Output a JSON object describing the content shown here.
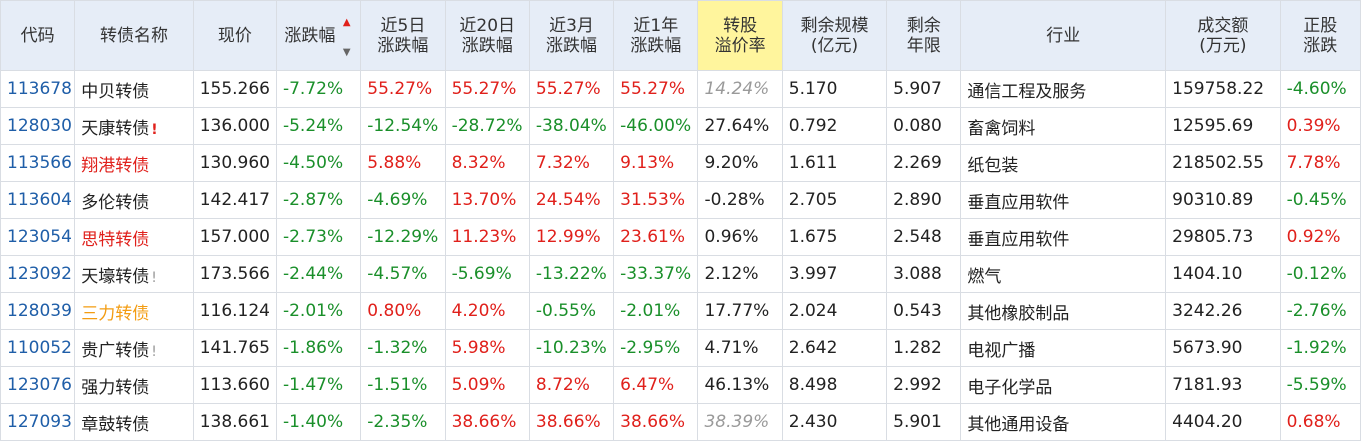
{
  "colors": {
    "header_bg": "#e6edf7",
    "header_highlight": "#fff59d",
    "code": "#1f5ea8",
    "up": "#e0201b",
    "down": "#1a8f2a",
    "muted": "#9a9a9a",
    "special_name": "#f39c12"
  },
  "headers": {
    "code": "代码",
    "name": "转债名称",
    "price": "现价",
    "change": "涨跌幅",
    "d5": [
      "近5日",
      "涨跌幅"
    ],
    "d20": [
      "近20日",
      "涨跌幅"
    ],
    "m3": [
      "近3月",
      "涨跌幅"
    ],
    "y1": [
      "近1年",
      "涨跌幅"
    ],
    "premium": [
      "转股",
      "溢价率"
    ],
    "scale": [
      "剩余规模",
      "(亿元)"
    ],
    "years": [
      "剩余",
      "年限"
    ],
    "industry": "行业",
    "volume": [
      "成交额",
      "(万元)"
    ],
    "stock": [
      "正股",
      "涨跌"
    ]
  },
  "sort_icons": {
    "asc": "▲",
    "desc": "▼"
  },
  "rows": [
    {
      "code": "113678",
      "name": "中贝转债",
      "name_style": "",
      "mark": "",
      "mark_style": "",
      "price": "155.266",
      "change": "-7.72%",
      "change_c": "green",
      "d5": "55.27%",
      "d5_c": "red",
      "d20": "55.27%",
      "d20_c": "red",
      "m3": "55.27%",
      "m3_c": "red",
      "y1": "55.27%",
      "y1_c": "red",
      "premium": "14.24%",
      "premium_c": "gray",
      "scale": "5.170",
      "years": "5.907",
      "industry": "通信工程及服务",
      "volume": "159758.22",
      "stock": "-4.60%",
      "stock_c": "green"
    },
    {
      "code": "128030",
      "name": "天康转债",
      "name_style": "",
      "mark": "!",
      "mark_style": "mark-red",
      "price": "136.000",
      "change": "-5.24%",
      "change_c": "green",
      "d5": "-12.54%",
      "d5_c": "green",
      "d20": "-28.72%",
      "d20_c": "green",
      "m3": "-38.04%",
      "m3_c": "green",
      "y1": "-46.00%",
      "y1_c": "green",
      "premium": "27.64%",
      "premium_c": "",
      "scale": "0.792",
      "years": "0.080",
      "industry": "畜禽饲料",
      "volume": "12595.69",
      "stock": "0.39%",
      "stock_c": "red"
    },
    {
      "code": "113566",
      "name": "翔港转债",
      "name_style": "red",
      "mark": "",
      "mark_style": "",
      "price": "130.960",
      "change": "-4.50%",
      "change_c": "green",
      "d5": "5.88%",
      "d5_c": "red",
      "d20": "8.32%",
      "d20_c": "red",
      "m3": "7.32%",
      "m3_c": "red",
      "y1": "9.13%",
      "y1_c": "red",
      "premium": "9.20%",
      "premium_c": "",
      "scale": "1.611",
      "years": "2.269",
      "industry": "纸包装",
      "volume": "218502.55",
      "stock": "7.78%",
      "stock_c": "red"
    },
    {
      "code": "113604",
      "name": "多伦转债",
      "name_style": "",
      "mark": "",
      "mark_style": "",
      "price": "142.417",
      "change": "-2.87%",
      "change_c": "green",
      "d5": "-4.69%",
      "d5_c": "green",
      "d20": "13.70%",
      "d20_c": "red",
      "m3": "24.54%",
      "m3_c": "red",
      "y1": "31.53%",
      "y1_c": "red",
      "premium": "-0.28%",
      "premium_c": "",
      "scale": "2.705",
      "years": "2.890",
      "industry": "垂直应用软件",
      "volume": "90310.89",
      "stock": "-0.45%",
      "stock_c": "green"
    },
    {
      "code": "123054",
      "name": "思特转债",
      "name_style": "red",
      "mark": "",
      "mark_style": "",
      "price": "157.000",
      "change": "-2.73%",
      "change_c": "green",
      "d5": "-12.29%",
      "d5_c": "green",
      "d20": "11.23%",
      "d20_c": "red",
      "m3": "12.99%",
      "m3_c": "red",
      "y1": "23.61%",
      "y1_c": "red",
      "premium": "0.96%",
      "premium_c": "",
      "scale": "1.675",
      "years": "2.548",
      "industry": "垂直应用软件",
      "volume": "29805.73",
      "stock": "0.92%",
      "stock_c": "red"
    },
    {
      "code": "123092",
      "name": "天壕转债",
      "name_style": "",
      "mark": "!",
      "mark_style": "mark-gray",
      "price": "173.566",
      "change": "-2.44%",
      "change_c": "green",
      "d5": "-4.57%",
      "d5_c": "green",
      "d20": "-5.69%",
      "d20_c": "green",
      "m3": "-13.22%",
      "m3_c": "green",
      "y1": "-33.37%",
      "y1_c": "green",
      "premium": "2.12%",
      "premium_c": "",
      "scale": "3.997",
      "years": "3.088",
      "industry": "燃气",
      "volume": "1404.10",
      "stock": "-0.12%",
      "stock_c": "green"
    },
    {
      "code": "128039",
      "name": "三力转债",
      "name_style": "orange",
      "mark": "",
      "mark_style": "",
      "price": "116.124",
      "change": "-2.01%",
      "change_c": "green",
      "d5": "0.80%",
      "d5_c": "red",
      "d20": "4.20%",
      "d20_c": "red",
      "m3": "-0.55%",
      "m3_c": "green",
      "y1": "-2.01%",
      "y1_c": "green",
      "premium": "17.77%",
      "premium_c": "",
      "scale": "2.024",
      "years": "0.543",
      "industry": "其他橡胶制品",
      "volume": "3242.26",
      "stock": "-2.76%",
      "stock_c": "green"
    },
    {
      "code": "110052",
      "name": "贵广转债",
      "name_style": "",
      "mark": "!",
      "mark_style": "mark-gray",
      "price": "141.765",
      "change": "-1.86%",
      "change_c": "green",
      "d5": "-1.32%",
      "d5_c": "green",
      "d20": "5.98%",
      "d20_c": "red",
      "m3": "-10.23%",
      "m3_c": "green",
      "y1": "-2.95%",
      "y1_c": "green",
      "premium": "4.71%",
      "premium_c": "",
      "scale": "2.642",
      "years": "1.282",
      "industry": "电视广播",
      "volume": "5673.90",
      "stock": "-1.92%",
      "stock_c": "green"
    },
    {
      "code": "123076",
      "name": "强力转债",
      "name_style": "",
      "mark": "",
      "mark_style": "",
      "price": "113.660",
      "change": "-1.47%",
      "change_c": "green",
      "d5": "-1.51%",
      "d5_c": "green",
      "d20": "5.09%",
      "d20_c": "red",
      "m3": "8.72%",
      "m3_c": "red",
      "y1": "6.47%",
      "y1_c": "red",
      "premium": "46.13%",
      "premium_c": "",
      "scale": "8.498",
      "years": "2.992",
      "industry": "电子化学品",
      "volume": "7181.93",
      "stock": "-5.59%",
      "stock_c": "green"
    },
    {
      "code": "127093",
      "name": "章鼓转债",
      "name_style": "",
      "mark": "",
      "mark_style": "",
      "price": "138.661",
      "change": "-1.40%",
      "change_c": "green",
      "d5": "-2.35%",
      "d5_c": "green",
      "d20": "38.66%",
      "d20_c": "red",
      "m3": "38.66%",
      "m3_c": "red",
      "y1": "38.66%",
      "y1_c": "red",
      "premium": "38.39%",
      "premium_c": "gray",
      "scale": "2.430",
      "years": "5.901",
      "industry": "其他通用设备",
      "volume": "4404.20",
      "stock": "0.68%",
      "stock_c": "red"
    }
  ]
}
